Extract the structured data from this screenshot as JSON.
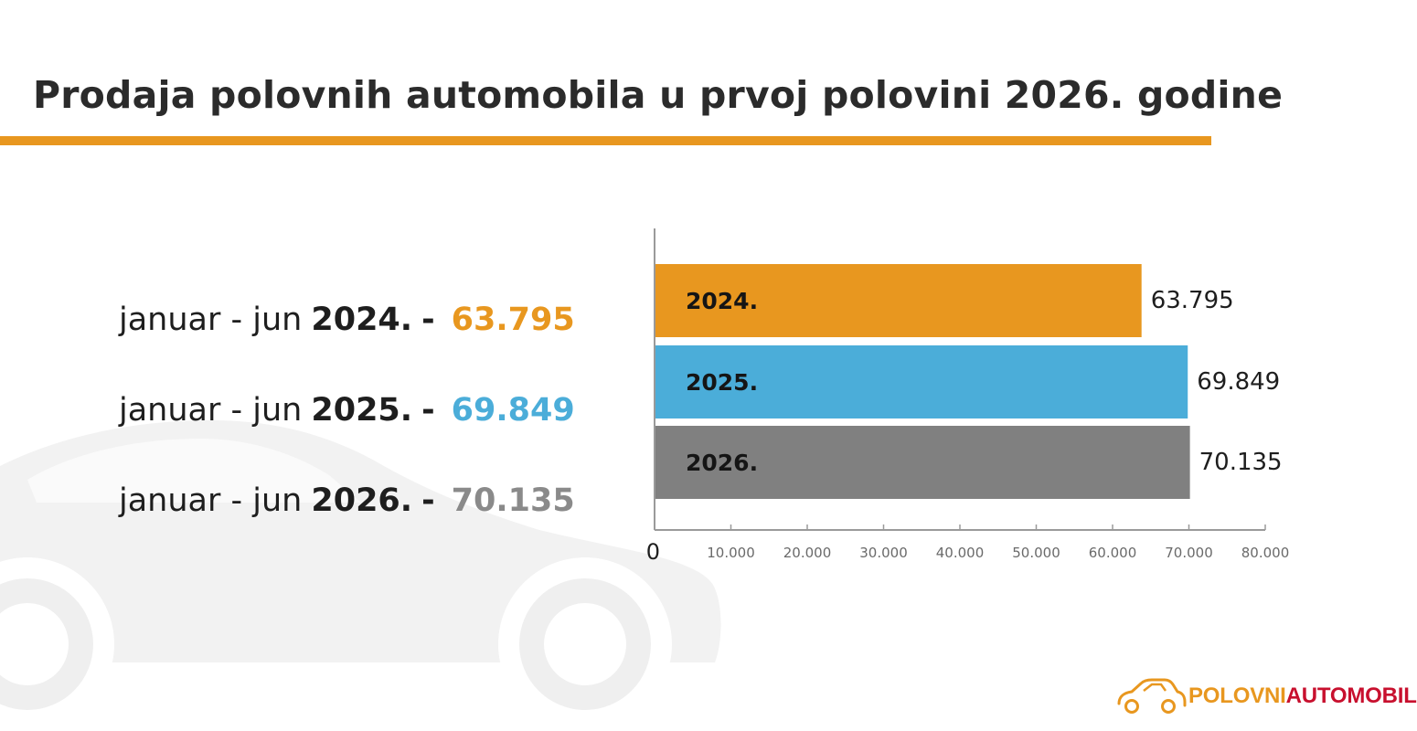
{
  "title": "Prodaja polovnih automobila u prvoj polovini 2026. godine",
  "summary": [
    {
      "period": "januar - jun",
      "year": "2024.",
      "dash": "-",
      "value": "63.795",
      "color": "#e8971f"
    },
    {
      "period": "januar - jun",
      "year": "2025.",
      "dash": "-",
      "value": "69.849",
      "color": "#4badd9"
    },
    {
      "period": "januar - jun",
      "year": "2026.",
      "dash": "-",
      "value": "70.135",
      "color": "#8a8a8a"
    }
  ],
  "chart_data": {
    "type": "bar",
    "orientation": "horizontal",
    "categories": [
      "2024.",
      "2025.",
      "2026."
    ],
    "values": [
      63795,
      69849,
      70135
    ],
    "value_labels": [
      "63.795",
      "69.849",
      "70.135"
    ],
    "colors": [
      "#e8971f",
      "#4badd9",
      "#808080"
    ],
    "xlim": [
      0,
      80000
    ],
    "x_ticks": [
      0,
      10000,
      20000,
      30000,
      40000,
      50000,
      60000,
      70000,
      80000
    ],
    "x_tick_labels": [
      "0",
      "10.000",
      "20.000",
      "30.000",
      "40.000",
      "50.000",
      "60.000",
      "70.000",
      "80.000"
    ],
    "grid": false
  },
  "logo": {
    "part1": "POLOVNI",
    "part2": "AUTOMOBILI",
    "color1": "#e8971f",
    "color2": "#c8102e"
  }
}
